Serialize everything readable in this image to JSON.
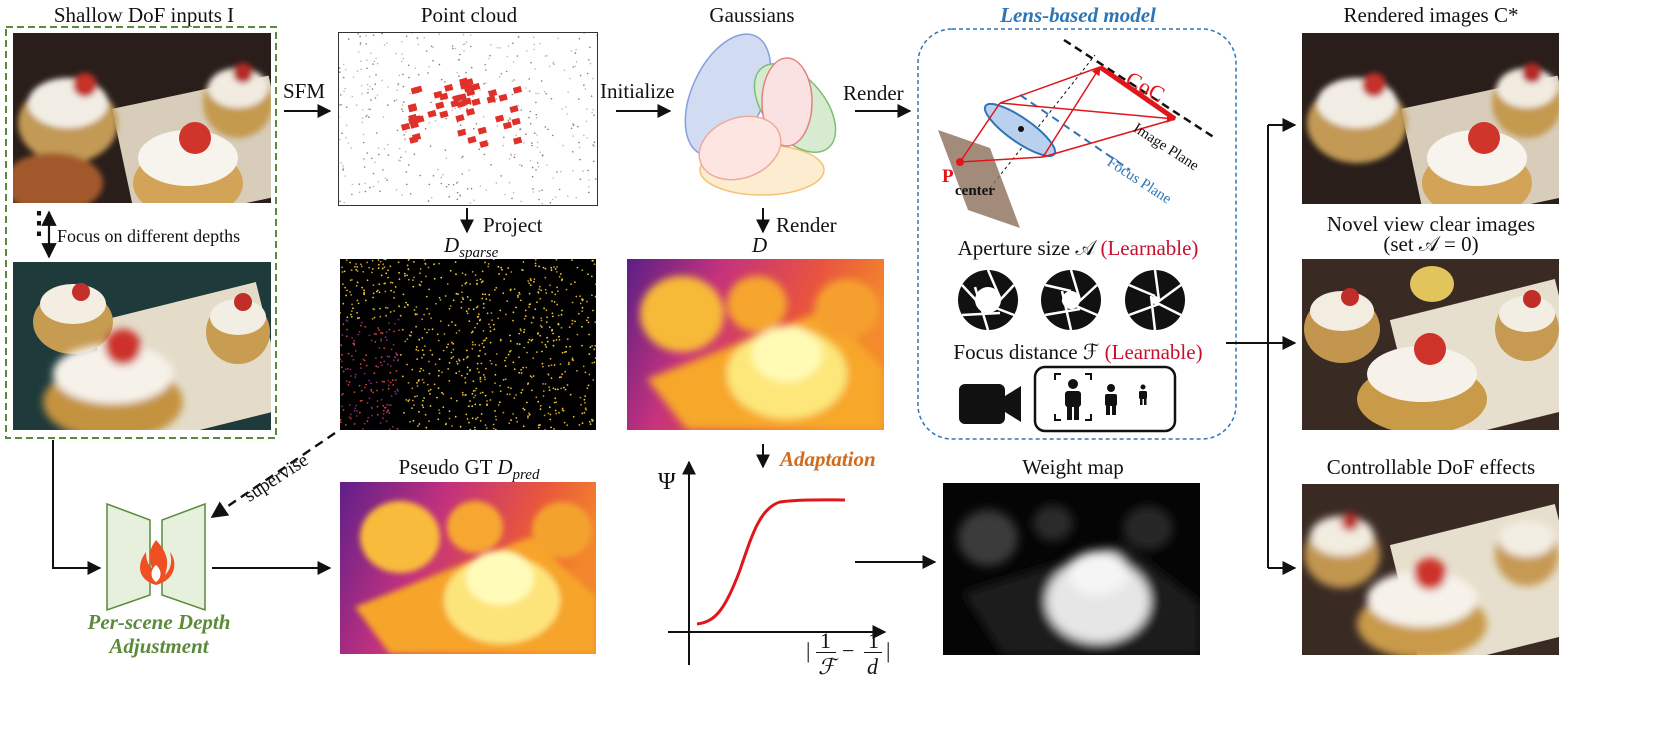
{
  "inputs": {
    "title": "Shallow DoF inputs I",
    "focus_note": "Focus on different depths",
    "dots": "⋮"
  },
  "pointcloud": {
    "title": "Point cloud",
    "project": "Project",
    "dsparse": "D_sparse"
  },
  "gaussians": {
    "title": "Gaussians",
    "render": "Render",
    "d": "D"
  },
  "arrows": {
    "sfm": "SFM",
    "initialize": "Initialize",
    "render": "Render",
    "supervise": "supervise"
  },
  "lens": {
    "title": "Lens-based model",
    "coc": "CoC",
    "image_plane": "Image Plane",
    "focus_plane": "Focus Plane",
    "p": "P",
    "center": "center",
    "aperture_label": "Aperture size 𝒜",
    "focus_label": "Focus distance ℱ",
    "learnable": "(Learnable)"
  },
  "depth_adjust": {
    "title": "Per-scene Depth Adjustment",
    "line1": "Per-scene Depth",
    "line2": "Adjustment"
  },
  "pseudo": {
    "title": "Pseudo GT D_pred"
  },
  "adaptation": {
    "label": "Adaptation",
    "psi": "Ψ",
    "xlabel": "|1/ℱ − 1/d|",
    "frac_f": "ℱ",
    "frac_d": "d",
    "one": "1"
  },
  "weight": {
    "title": "Weight map"
  },
  "outputs": {
    "rendered": "Rendered images C*",
    "novel_line1": "Novel view clear images",
    "novel_line2": "(set 𝒜 = 0)",
    "controllable": "Controllable DoF effects"
  },
  "colors": {
    "green": "#5a8a3a",
    "blue": "#2e75b6",
    "red": "#c8102e",
    "orange": "#d26a1a"
  },
  "icons": [
    "shutter-icon",
    "shutter-icon",
    "shutter-icon",
    "video-camera-icon",
    "person-focus-icon",
    "person-icon",
    "person-small-icon",
    "flame-icon"
  ]
}
